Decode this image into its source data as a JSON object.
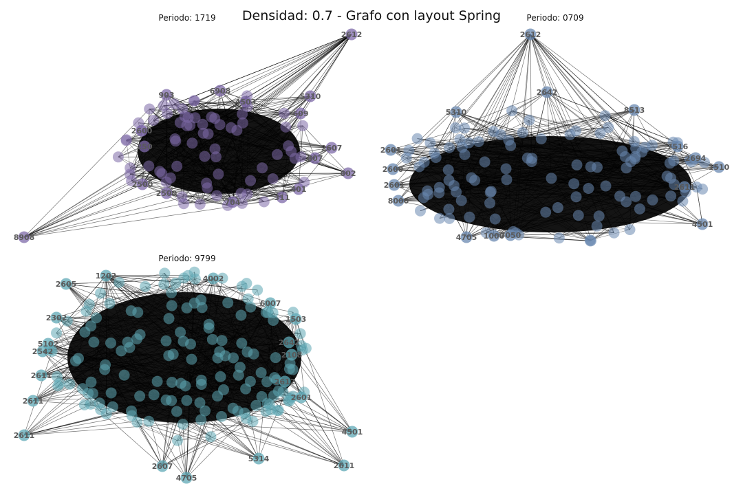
{
  "figure": {
    "title": "Densidad: 0.7 - Grafo con layout Spring"
  },
  "panels": [
    {
      "id": "p1",
      "title": "Periodo: 1719",
      "node_color": "#7e6aa8",
      "outer_nodes": [
        {
          "label": "2612"
        },
        {
          "label": "903"
        },
        {
          "label": "6908"
        },
        {
          "label": "4503"
        },
        {
          "label": "5310"
        },
        {
          "label": "609"
        },
        {
          "label": "2607"
        },
        {
          "label": "807"
        },
        {
          "label": "802"
        },
        {
          "label": "401"
        },
        {
          "label": "311"
        },
        {
          "label": "704"
        },
        {
          "label": "2500"
        },
        {
          "label": "2500"
        },
        {
          "label": "250"
        },
        {
          "label": "2600"
        },
        {
          "label": "8908"
        }
      ]
    },
    {
      "id": "p2",
      "title": "Periodo: 0709",
      "node_color": "#6a88b0",
      "outer_nodes": [
        {
          "label": "2612"
        },
        {
          "label": "2642"
        },
        {
          "label": "5310"
        },
        {
          "label": "8513"
        },
        {
          "label": "7516"
        },
        {
          "label": "2694"
        },
        {
          "label": "1510"
        },
        {
          "label": "2611"
        },
        {
          "label": "4501"
        },
        {
          "label": "4705"
        },
        {
          "label": "1000"
        },
        {
          "label": "7050"
        },
        {
          "label": "2601"
        },
        {
          "label": "2600"
        },
        {
          "label": "2601"
        },
        {
          "label": "8000"
        }
      ]
    },
    {
      "id": "p3",
      "title": "Periodo: 9799",
      "node_color": "#5fa8b5",
      "outer_nodes": [
        {
          "label": "1202"
        },
        {
          "label": "2605"
        },
        {
          "label": "4002"
        },
        {
          "label": "6007"
        },
        {
          "label": "1503"
        },
        {
          "label": "2642"
        },
        {
          "label": "2108"
        },
        {
          "label": "2612"
        },
        {
          "label": "2601"
        },
        {
          "label": "4501"
        },
        {
          "label": "2611"
        },
        {
          "label": "5314"
        },
        {
          "label": "4705"
        },
        {
          "label": "2607"
        },
        {
          "label": "2611"
        },
        {
          "label": "2611"
        },
        {
          "label": "2611"
        },
        {
          "label": "2542"
        },
        {
          "label": "5102"
        },
        {
          "label": "2302"
        }
      ]
    }
  ]
}
